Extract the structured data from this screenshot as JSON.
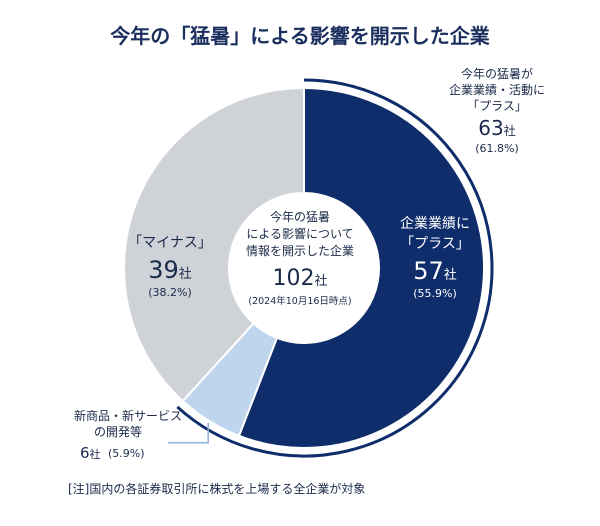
{
  "chart_data": {
    "type": "pie",
    "title": "今年の「猛暑」による影響を開示した企業",
    "center": {
      "line1": "今年の猛暑",
      "line2": "による影響について",
      "line3": "情報を開示した企業",
      "count_number": "102",
      "count_unit": "社",
      "date": "(2024年10月16日時点)"
    },
    "slices": [
      {
        "label": "企業業績に「プラス」",
        "value": 57,
        "percent": 55.9,
        "color": "#0f2d6b"
      },
      {
        "label": "新商品・新サービスの開発等",
        "value": 6,
        "percent": 5.9,
        "color": "#bfd5ee"
      },
      {
        "label": "「マイナス」",
        "value": 39,
        "percent": 38.2,
        "color": "#cfd3d8"
      }
    ],
    "callout_plus": {
      "line1": "今年の猛暑が",
      "line2": "企業業績・活動に",
      "line3": "「プラス」",
      "value": 63,
      "unit": "社",
      "percent": "(61.8%)"
    },
    "labels": {
      "plus": {
        "line1": "企業業績に",
        "line2": "「プラス」",
        "value": "57",
        "unit": "社",
        "percent": "(55.9%)"
      },
      "minus": {
        "line1": "「マイナス」",
        "value": "39",
        "unit": "社",
        "percent": "(38.2%)"
      },
      "new": {
        "line1": "新商品・新サービス",
        "line2": "の開発等",
        "value": "6",
        "unit": "社",
        "percent": "(5.9%)"
      }
    }
  },
  "note": "[注]国内の各証券取引所に株式を上場する全企業が対象"
}
